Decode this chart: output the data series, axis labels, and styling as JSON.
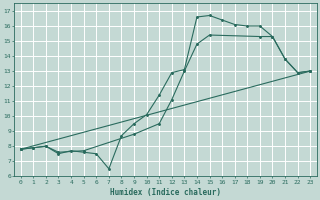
{
  "title": "",
  "xlabel": "Humidex (Indice chaleur)",
  "bg_color": "#c4d9d4",
  "grid_color": "#ffffff",
  "line_color": "#2a6b5e",
  "xlim": [
    -0.5,
    23.5
  ],
  "ylim": [
    6,
    17.5
  ],
  "xticks": [
    0,
    1,
    2,
    3,
    4,
    5,
    6,
    7,
    8,
    9,
    10,
    11,
    12,
    13,
    14,
    15,
    16,
    17,
    18,
    19,
    20,
    21,
    22,
    23
  ],
  "yticks": [
    6,
    7,
    8,
    9,
    10,
    11,
    12,
    13,
    14,
    15,
    16,
    17
  ],
  "line1_x": [
    0,
    1,
    2,
    3,
    4,
    5,
    6,
    7,
    8,
    9,
    10,
    11,
    12,
    13,
    14,
    15,
    16,
    17,
    18,
    19,
    20,
    21,
    22,
    23
  ],
  "line1_y": [
    7.8,
    7.9,
    8.0,
    7.5,
    7.7,
    7.6,
    7.5,
    6.5,
    8.7,
    9.5,
    10.1,
    11.4,
    12.9,
    13.1,
    16.6,
    16.7,
    16.4,
    16.1,
    16.0,
    16.0,
    15.3,
    13.8,
    12.9,
    13.0
  ],
  "line2_x": [
    0,
    1,
    2,
    3,
    5,
    9,
    11,
    12,
    13,
    14,
    15,
    19,
    20,
    21,
    22,
    23
  ],
  "line2_y": [
    7.8,
    7.9,
    8.0,
    7.6,
    7.7,
    8.8,
    9.5,
    11.1,
    13.0,
    14.8,
    15.4,
    15.3,
    15.3,
    13.8,
    12.9,
    13.0
  ],
  "line3_x": [
    0,
    23
  ],
  "line3_y": [
    7.8,
    13.0
  ]
}
